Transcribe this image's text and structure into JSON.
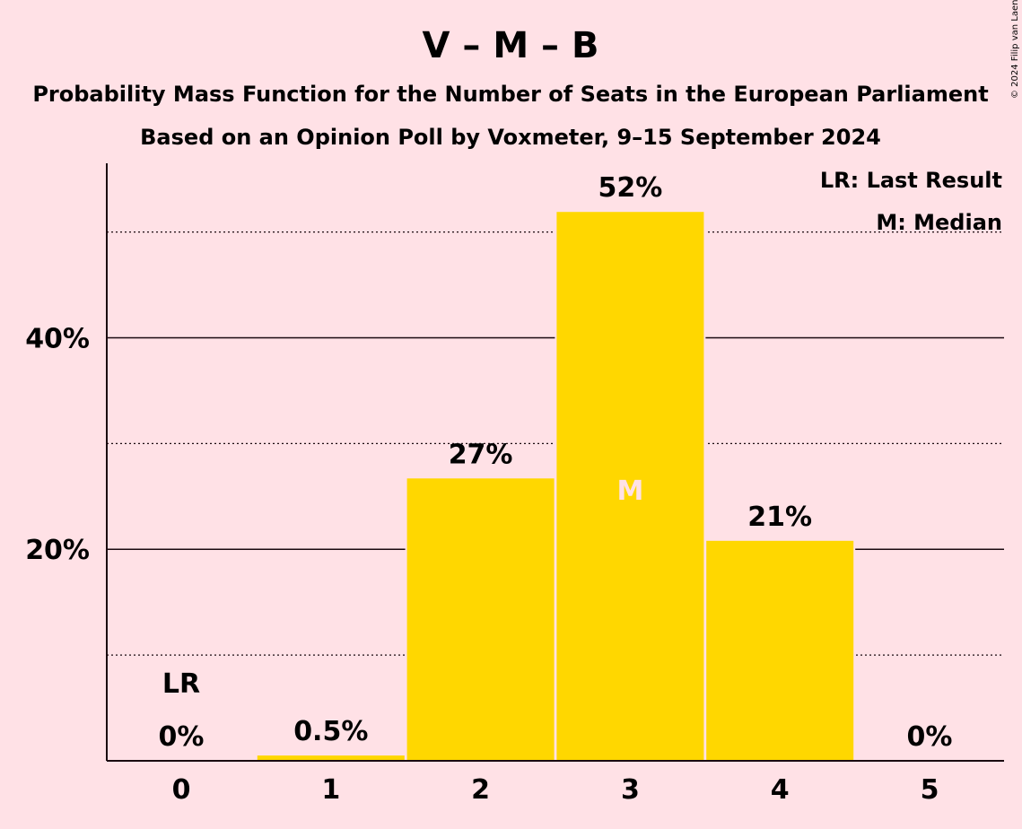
{
  "title": "V – M – B",
  "subtitle1": "Probability Mass Function for the Number of Seats in the European Parliament",
  "subtitle2": "Based on an Opinion Poll by Voxmeter, 9–15 September 2024",
  "copyright": "© 2024 Filip van Laenen",
  "legend": {
    "last_result": "LR: Last Result",
    "median": "M: Median"
  },
  "colors": {
    "background": "#ffe1e6",
    "bar": "#ffd700",
    "text": "#1a0a10",
    "median_text": "#ffe1e6"
  },
  "chart_data": {
    "type": "bar",
    "categories": [
      "0",
      "1",
      "2",
      "3",
      "4",
      "5"
    ],
    "values": [
      0,
      0.5,
      26.7,
      51.9,
      20.8,
      0
    ],
    "labels": [
      "0%",
      "0.5%",
      "27%",
      "52%",
      "21%",
      "0%"
    ],
    "ylim": [
      0,
      56.5
    ],
    "yticks_major": [
      20,
      40
    ],
    "ytick_labels": [
      "20%",
      "40%"
    ],
    "yticks_minor": [
      10,
      30,
      50
    ],
    "last_result_index": 0,
    "last_result_marker": "LR",
    "median_index": 3,
    "median_marker": "M",
    "xlabel": "",
    "ylabel": ""
  }
}
